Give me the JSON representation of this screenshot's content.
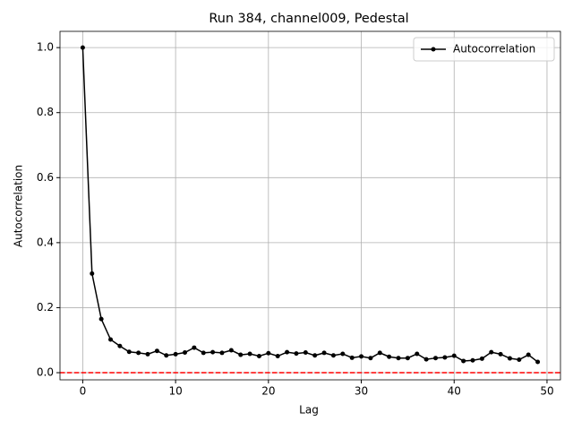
{
  "chart_data": {
    "type": "line",
    "title": "Run 384, channel009, Pedestal",
    "x_label": "Lag",
    "y_label": "Autocorrelation",
    "x": [
      0,
      1,
      2,
      3,
      4,
      5,
      6,
      7,
      8,
      9,
      10,
      11,
      12,
      13,
      14,
      15,
      16,
      17,
      18,
      19,
      20,
      21,
      22,
      23,
      24,
      25,
      26,
      27,
      28,
      29,
      30,
      31,
      32,
      33,
      34,
      35,
      36,
      37,
      38,
      39,
      40,
      41,
      42,
      43,
      44,
      45,
      46,
      47,
      48,
      49
    ],
    "series": [
      {
        "name": "Autocorrelation",
        "color": "#000000",
        "values": [
          1.0,
          0.305,
          0.165,
          0.102,
          0.082,
          0.064,
          0.061,
          0.057,
          0.067,
          0.053,
          0.057,
          0.062,
          0.077,
          0.061,
          0.063,
          0.061,
          0.069,
          0.055,
          0.058,
          0.051,
          0.06,
          0.051,
          0.063,
          0.059,
          0.062,
          0.053,
          0.061,
          0.053,
          0.058,
          0.046,
          0.05,
          0.045,
          0.061,
          0.049,
          0.045,
          0.045,
          0.058,
          0.041,
          0.045,
          0.047,
          0.052,
          0.036,
          0.038,
          0.043,
          0.063,
          0.057,
          0.044,
          0.04,
          0.055,
          0.033
        ]
      }
    ],
    "reference_line": {
      "value": 0,
      "color": "#ff0000"
    },
    "xlim": [
      -2.45,
      51.45
    ],
    "xticks": [
      0,
      10,
      20,
      30,
      40,
      50
    ],
    "ylim": [
      -0.022,
      1.05
    ],
    "yticks": [
      {
        "value": 0,
        "label": "0.0"
      },
      0.2,
      0.4,
      0.6,
      0.8,
      {
        "value": 1,
        "label": "1.0"
      }
    ],
    "grid": true,
    "legend": "upper right"
  }
}
